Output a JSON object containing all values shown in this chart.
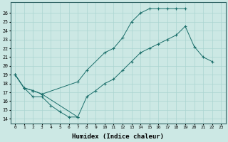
{
  "xlabel": "Humidex (Indice chaleur)",
  "bg_color": "#cce8e4",
  "grid_color": "#aad4d0",
  "line_color": "#1a6e6a",
  "xlim": [
    -0.5,
    23.5
  ],
  "ylim": [
    13.5,
    27.2
  ],
  "yticks": [
    14,
    15,
    16,
    17,
    18,
    19,
    20,
    21,
    22,
    23,
    24,
    25,
    26
  ],
  "xticks": [
    0,
    1,
    2,
    3,
    4,
    5,
    6,
    7,
    8,
    9,
    10,
    11,
    12,
    13,
    14,
    15,
    16,
    17,
    18,
    19,
    20,
    21,
    22,
    23
  ],
  "series1_x": [
    0,
    1,
    2,
    3,
    4,
    5,
    6,
    7
  ],
  "series1_y": [
    19.0,
    17.5,
    16.5,
    16.5,
    15.5,
    14.8,
    14.2,
    14.2
  ],
  "series2_x": [
    0,
    1,
    2,
    3,
    7,
    8,
    10,
    11,
    12,
    13,
    14,
    15,
    16,
    17,
    18,
    19
  ],
  "series2_y": [
    19.0,
    17.5,
    17.2,
    16.8,
    18.2,
    19.5,
    21.5,
    22.0,
    23.2,
    25.0,
    26.0,
    26.5,
    26.5,
    26.5,
    26.5,
    26.5
  ],
  "series3_x": [
    0,
    1,
    2,
    3,
    7,
    8,
    9,
    10,
    11,
    12,
    13,
    14,
    15,
    16,
    17,
    18,
    19,
    20,
    21,
    22
  ],
  "series3_y": [
    19.0,
    17.5,
    17.2,
    16.8,
    14.2,
    16.5,
    17.2,
    18.0,
    18.5,
    19.5,
    20.5,
    21.5,
    22.0,
    22.5,
    23.0,
    23.5,
    24.5,
    22.2,
    21.0,
    20.5
  ]
}
